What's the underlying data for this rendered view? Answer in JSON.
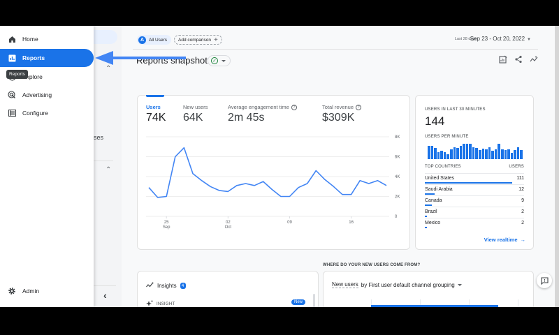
{
  "nav": {
    "items": [
      {
        "label": "Home",
        "icon": "home-icon"
      },
      {
        "label": "Reports",
        "icon": "reports-icon",
        "active": true
      },
      {
        "label": "Explore",
        "icon": "explore-icon"
      },
      {
        "label": "Advertising",
        "icon": "advertising-icon"
      },
      {
        "label": "Configure",
        "icon": "configure-icon"
      }
    ],
    "tooltip": "Reports",
    "admin_label": "Admin",
    "background_partial_text": "ses"
  },
  "topbar": {
    "segment_avatar": "A",
    "segment_label": "All Users",
    "add_comparison": "Add comparison",
    "date_range_label": "Last 28 days",
    "date_range_value": "Sep 23 - Oct 20, 2022"
  },
  "page": {
    "title": "Reports snapshot"
  },
  "kpis": [
    {
      "label": "Users",
      "value": "74K",
      "active": true,
      "help": false
    },
    {
      "label": "New users",
      "value": "64K",
      "active": false,
      "help": false
    },
    {
      "label": "Average engagement time",
      "value": "2m 45s",
      "active": false,
      "help": true
    },
    {
      "label": "Total revenue",
      "value": "$309K",
      "active": false,
      "help": true
    }
  ],
  "chart_data": {
    "type": "line",
    "title": "Users",
    "xlabel": "",
    "ylabel": "",
    "x": [
      "Sep 23",
      "Sep 24",
      "Sep 25",
      "Sep 26",
      "Sep 27",
      "Sep 28",
      "Sep 29",
      "Sep 30",
      "Oct 01",
      "Oct 02",
      "Oct 03",
      "Oct 04",
      "Oct 05",
      "Oct 06",
      "Oct 07",
      "Oct 08",
      "Oct 09",
      "Oct 10",
      "Oct 11",
      "Oct 12",
      "Oct 13",
      "Oct 14",
      "Oct 15",
      "Oct 16",
      "Oct 17",
      "Oct 18",
      "Oct 19",
      "Oct 20"
    ],
    "values": [
      2900,
      1900,
      2000,
      6000,
      6900,
      4300,
      3600,
      3000,
      2600,
      2500,
      3100,
      3300,
      3100,
      3500,
      2700,
      2000,
      2000,
      2900,
      3300,
      4600,
      3700,
      3000,
      2200,
      2200,
      3600,
      3300,
      3600,
      3100
    ],
    "ylim": [
      0,
      8000
    ],
    "yticks": [
      "8K",
      "6K",
      "4K",
      "2K",
      "0"
    ],
    "xticks": [
      {
        "day": "25",
        "month": "Sep"
      },
      {
        "day": "02",
        "month": "Oct"
      },
      {
        "day": "09",
        "month": ""
      },
      {
        "day": "16",
        "month": ""
      }
    ],
    "grid": true,
    "color": "#4285f4"
  },
  "realtime": {
    "title": "USERS IN LAST 30 MINUTES",
    "count": "144",
    "per_minute_label": "USERS PER MINUTE",
    "per_minute_bars": [
      16,
      16,
      14,
      9,
      10,
      9,
      6,
      12,
      15,
      14,
      16,
      19,
      19,
      19,
      15,
      14,
      11,
      13,
      12,
      15,
      10,
      12,
      19,
      12,
      11,
      12,
      8,
      11,
      15,
      11
    ],
    "countries_header": "TOP COUNTRIES",
    "users_header": "USERS",
    "countries": [
      {
        "name": "United States",
        "users": "111",
        "pct": 88
      },
      {
        "name": "Saudi Arabia",
        "users": "12",
        "pct": 10
      },
      {
        "name": "Canada",
        "users": "9",
        "pct": 7
      },
      {
        "name": "Brazil",
        "users": "2",
        "pct": 2
      },
      {
        "name": "Mexico",
        "users": "2",
        "pct": 2
      }
    ],
    "link": "View realtime"
  },
  "insights": {
    "title": "Insights",
    "count": "4",
    "row_label": "INSIGHT",
    "new_badge": "New"
  },
  "sources": {
    "section_label": "WHERE DO YOUR NEW USERS COME FROM?",
    "metric": "New users",
    "by_label": "by First user default channel grouping"
  },
  "colors": {
    "accent": "#1a73e8",
    "line": "#4285f4",
    "success": "#188038"
  }
}
